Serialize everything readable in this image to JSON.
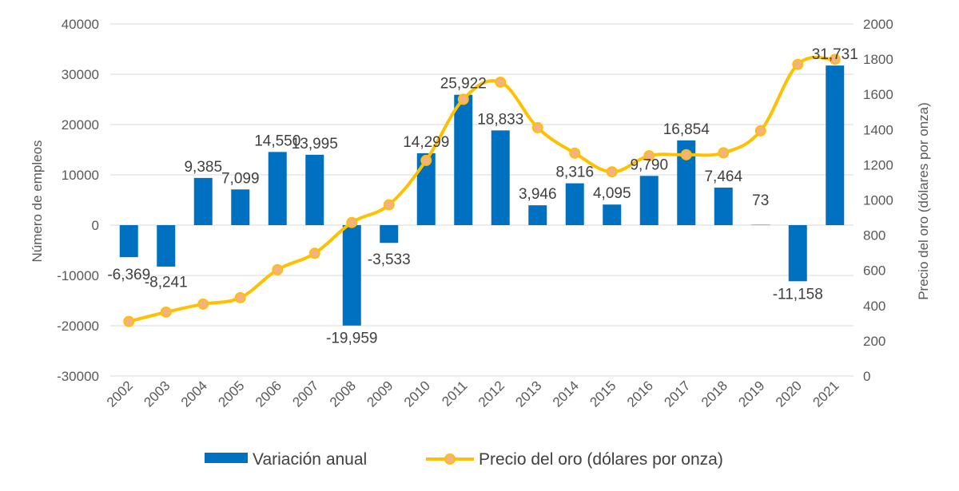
{
  "chart_data": {
    "type": "bar",
    "categories": [
      "2002",
      "2003",
      "2004",
      "2005",
      "2006",
      "2007",
      "2008",
      "2009",
      "2010",
      "2011",
      "2012",
      "2013",
      "2014",
      "2015",
      "2016",
      "2017",
      "2018",
      "2019",
      "2020",
      "2021"
    ],
    "series": [
      {
        "name": "Variación anual",
        "type": "bar",
        "axis": "left",
        "color": "#0070C0",
        "values": [
          -6369,
          -8241,
          9385,
          7099,
          14550,
          13995,
          -19959,
          -3533,
          14299,
          25922,
          18833,
          3946,
          8316,
          4095,
          9790,
          16854,
          7464,
          73,
          -11158,
          31731
        ],
        "labels": [
          "-6,369",
          "-8,241",
          "9,385",
          "7,099",
          "14,550",
          "13,995",
          "-19,959",
          "-3,533",
          "14,299",
          "25,922",
          "18,833",
          "3,946",
          "8,316",
          "4,095",
          "9,790",
          "16,854",
          "7,464",
          "73",
          "-11,158",
          "31,731"
        ]
      },
      {
        "name": "Precio del oro (dólares por onza)",
        "type": "line",
        "axis": "right",
        "color": "#FFC000",
        "marker_color": "#F4B183",
        "values": [
          310,
          363,
          409,
          445,
          604,
          697,
          872,
          973,
          1225,
          1572,
          1669,
          1411,
          1266,
          1160,
          1251,
          1257,
          1268,
          1393,
          1770,
          1799
        ]
      }
    ],
    "y_left": {
      "label": "Número de empleos",
      "lim": [
        -30000,
        40000
      ],
      "ticks": [
        "-30000",
        "-20000",
        "-10000",
        "0",
        "10000",
        "20000",
        "30000",
        "40000"
      ]
    },
    "y_right": {
      "label": "Precio del oro (dólares por onza)",
      "lim": [
        0,
        2000
      ],
      "ticks": [
        "0",
        "200",
        "400",
        "600",
        "800",
        "1000",
        "1200",
        "1400",
        "1600",
        "1800",
        "2000"
      ]
    },
    "grid": true,
    "legend_position": "bottom"
  }
}
